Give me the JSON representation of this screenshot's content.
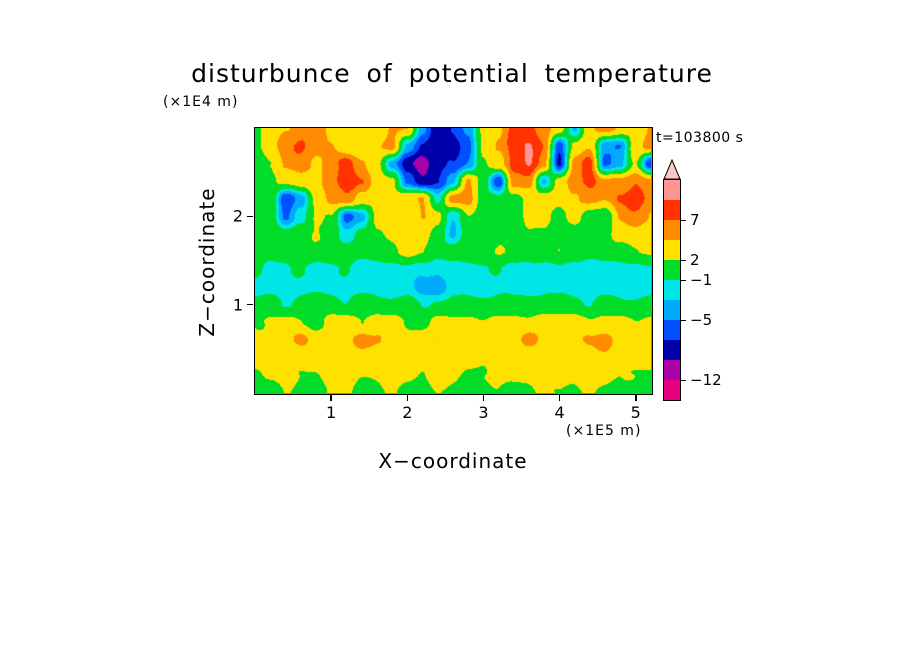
{
  "title": "disturbunce of potential temperature",
  "annotations": {
    "time_label": "t=103800 s",
    "y_unit": "(×1E4 m)",
    "x_unit": "(×1E5 m)"
  },
  "axes": {
    "x_label": "X−coordinate",
    "y_label": "Z−coordinate"
  },
  "colorbar": {
    "labels": [
      "7",
      "2",
      "−1",
      "−5",
      "−12"
    ],
    "values": [
      7,
      2,
      -1,
      -5,
      -12
    ]
  },
  "chart_data": {
    "type": "heatmap",
    "title": "disturbunce of potential temperature",
    "xlabel": "X−coordinate",
    "ylabel": "Z−coordinate",
    "x_unit": "×1E5 m",
    "z_unit": "×1E4 m",
    "time": "t=103800 s",
    "x_range": [
      0,
      5.2
    ],
    "z_range": [
      0,
      3.0
    ],
    "x_ticks": [
      1,
      2,
      3,
      4,
      5
    ],
    "z_ticks": [
      1,
      2
    ],
    "levels": [
      -12,
      -9,
      -7,
      -5,
      -3,
      -1,
      2,
      5,
      7,
      9,
      12
    ],
    "colors": [
      "#E60082",
      "#AA00AA",
      "#0000AA",
      "#0050FF",
      "#00AAFF",
      "#00E6E6",
      "#00DC28",
      "#FFE100",
      "#FF8C00",
      "#FF3200",
      "#FF9696",
      "#FFC8C8"
    ],
    "x": [
      0,
      0.2,
      0.4,
      0.6,
      0.8,
      1.0,
      1.2,
      1.4,
      1.6,
      1.8,
      2.0,
      2.2,
      2.4,
      2.6,
      2.8,
      3.0,
      3.2,
      3.4,
      3.6,
      3.8,
      4.0,
      4.2,
      4.4,
      4.6,
      4.8,
      5.0,
      5.2
    ],
    "z": [
      3.0,
      2.8,
      2.6,
      2.4,
      2.2,
      2.0,
      1.8,
      1.6,
      1.4,
      1.2,
      1.0,
      0.8,
      0.6,
      0.4,
      0.2,
      0.0
    ],
    "values": [
      [
        1,
        3,
        5,
        6,
        6,
        4,
        3,
        3,
        4,
        6,
        5,
        -4,
        -8,
        -7,
        -5,
        3,
        4,
        7,
        8,
        6,
        3,
        -3,
        5,
        6,
        5,
        3,
        5
      ],
      [
        1,
        4,
        6,
        7,
        6,
        5,
        3,
        3,
        5,
        6,
        -3,
        -7,
        -9,
        -8,
        -6,
        2,
        5,
        8,
        9,
        7,
        -6,
        3,
        5,
        -4,
        -5,
        4,
        6
      ],
      [
        0,
        2,
        5,
        6,
        5,
        6,
        8,
        6,
        3,
        -4,
        -8,
        -10,
        -8,
        -7,
        -5,
        1,
        4,
        8,
        9,
        6,
        -7,
        6,
        8,
        -5,
        -4,
        2,
        -7
      ],
      [
        0,
        1,
        3,
        4,
        4,
        7,
        9,
        7,
        4,
        3,
        -6,
        -9,
        -7,
        -4,
        5,
        1,
        -7,
        6,
        7,
        -3,
        3,
        7,
        8,
        5,
        6,
        7,
        5
      ],
      [
        0,
        1,
        -7,
        -4,
        3,
        6,
        7,
        4,
        3,
        3,
        4,
        5,
        -2,
        6,
        6,
        0,
        0,
        1,
        3,
        4,
        3,
        5,
        6,
        5,
        7,
        8,
        6
      ],
      [
        0,
        1,
        -6,
        -2,
        3,
        2,
        -6,
        -3,
        3,
        4,
        5,
        5,
        2,
        -3,
        2,
        0,
        0,
        0,
        3,
        3,
        2,
        3,
        0,
        0,
        5,
        6,
        5
      ],
      [
        1,
        1,
        0,
        1,
        2,
        1,
        -2,
        0,
        2,
        3,
        4,
        3,
        1,
        -4,
        0,
        0,
        1,
        0,
        2,
        2,
        1,
        1,
        0,
        1,
        3,
        4,
        3
      ],
      [
        1,
        0,
        0,
        1,
        1,
        2,
        1,
        0,
        1,
        2,
        3,
        2,
        0,
        0,
        1,
        1,
        2,
        1,
        0,
        1,
        2,
        1,
        0,
        0,
        1,
        2,
        2
      ],
      [
        0,
        -2,
        -2,
        -1,
        -2,
        -2,
        -1,
        -2,
        -2,
        -2,
        -1,
        -2,
        -3,
        -2,
        -2,
        -2,
        -1,
        -2,
        -2,
        -2,
        -1,
        -2,
        -2,
        -1,
        -2,
        -2,
        -1
      ],
      [
        -2,
        -2,
        -2,
        -2,
        -2,
        -2,
        -2,
        -2,
        -2,
        -2,
        -2,
        -4,
        -4,
        -2,
        -2,
        -2,
        -2,
        -2,
        -2,
        -2,
        -2,
        -2,
        -2,
        -2,
        -2,
        -2,
        -2
      ],
      [
        0,
        0,
        -1,
        0,
        0,
        0,
        -1,
        0,
        0,
        0,
        0,
        -1,
        0,
        0,
        0,
        0,
        0,
        -1,
        0,
        0,
        0,
        0,
        -1,
        0,
        0,
        0,
        0
      ],
      [
        2,
        3,
        3,
        2,
        1,
        3,
        3,
        2,
        3,
        3,
        2,
        1,
        3,
        3,
        3,
        2,
        3,
        3,
        2,
        3,
        3,
        3,
        2,
        3,
        3,
        2,
        3
      ],
      [
        3,
        3,
        4,
        6,
        4,
        3,
        4,
        6,
        5,
        3,
        3,
        4,
        5,
        3,
        4,
        5,
        3,
        4,
        6,
        4,
        3,
        4,
        5,
        6,
        4,
        3,
        3
      ],
      [
        3,
        4,
        4,
        3,
        3,
        4,
        4,
        3,
        3,
        4,
        3,
        3,
        4,
        4,
        3,
        3,
        4,
        3,
        3,
        4,
        4,
        3,
        4,
        4,
        3,
        3,
        3
      ],
      [
        2,
        3,
        3,
        2,
        2,
        3,
        3,
        2,
        2,
        3,
        3,
        2,
        3,
        3,
        2,
        2,
        3,
        3,
        2,
        3,
        3,
        2,
        3,
        3,
        2,
        2,
        2
      ],
      [
        1,
        1,
        2,
        1,
        1,
        2,
        2,
        1,
        1,
        2,
        1,
        1,
        2,
        2,
        1,
        1,
        2,
        1,
        1,
        2,
        2,
        1,
        2,
        2,
        1,
        1,
        1
      ]
    ]
  }
}
